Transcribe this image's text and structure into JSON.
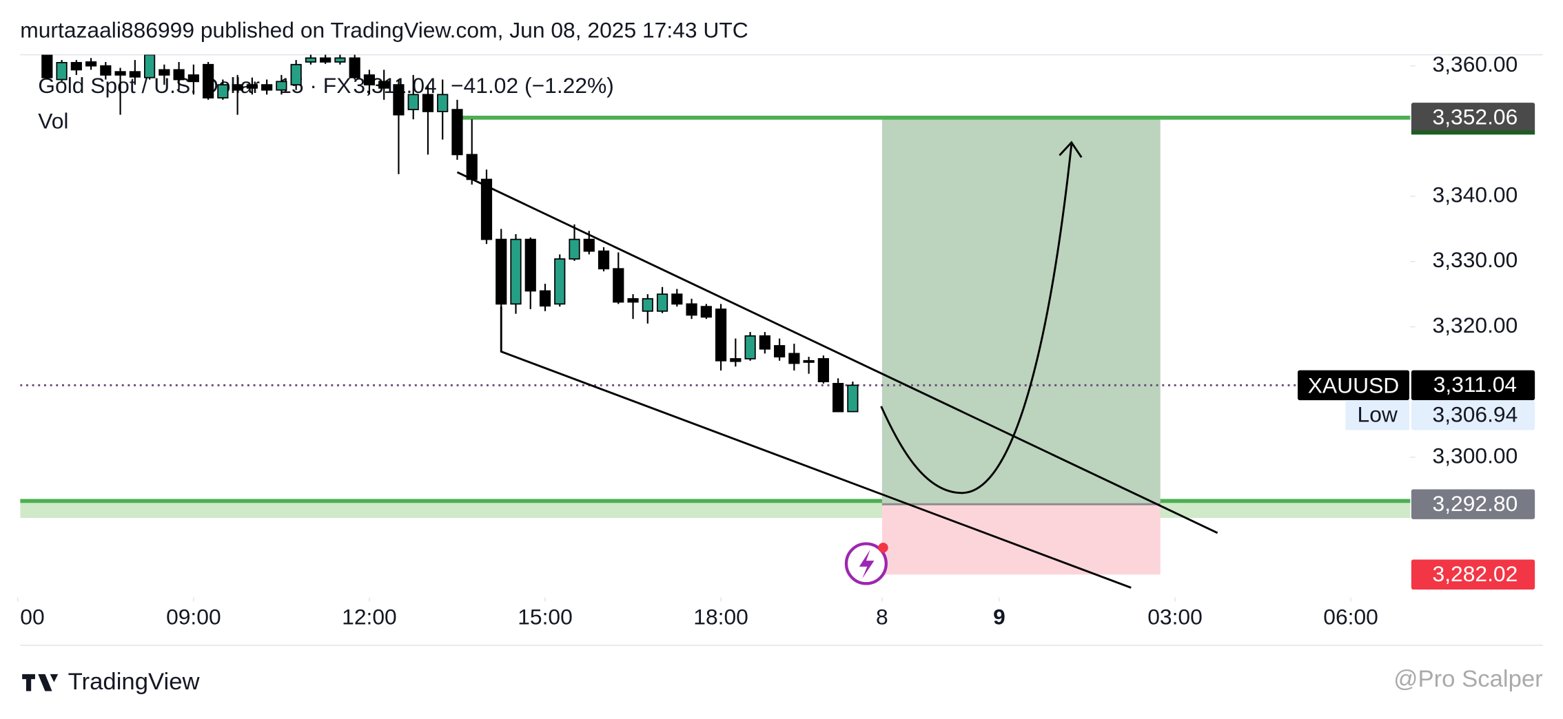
{
  "chart_data": {
    "type": "candlestick",
    "header": "murtazaali886999 published on TradingView.com, Jun 08, 2025 17:43 UTC",
    "symbol": "Gold Spot / U.S. Dollar · 15 · FX",
    "change": "−41.02 (−1.22%)",
    "volume_label": "Vol",
    "brand": "TradingView",
    "watermark": "@Pro Scalper",
    "up_color": "#26a085",
    "down_color": "#000000",
    "x": [
      2,
      3,
      4,
      5,
      6,
      7,
      8,
      9,
      10,
      11,
      12,
      13,
      14,
      15,
      16,
      17,
      18,
      19,
      20,
      21,
      22,
      23,
      24,
      25,
      26,
      27,
      28,
      29,
      30,
      31,
      32,
      33,
      34,
      35,
      36,
      37,
      38,
      39,
      40,
      41,
      42,
      43,
      44,
      45,
      46,
      47,
      48,
      49,
      50,
      51,
      52,
      53,
      54,
      55,
      56,
      57
    ],
    "open": [
      3361.7,
      3357.9,
      3360.5,
      3360.6,
      3360.0,
      3359.1,
      3359.1,
      3358.2,
      3359.4,
      3359.4,
      3358.6,
      3360.2,
      3355.1,
      3357.1,
      3357.1,
      3357.1,
      3356.3,
      3357.1,
      3360.6,
      3361.2,
      3360.6,
      3361.2,
      3358.6,
      3357.6,
      3357.1,
      3353.3,
      3355.6,
      3353.0,
      3353.3,
      3346.4,
      3342.6,
      3333.4,
      3323.5,
      3333.4,
      3325.5,
      3323.5,
      3330.4,
      3333.4,
      3331.6,
      3328.9,
      3324.3,
      3322.4,
      3322.4,
      3325.0,
      3323.5,
      3323.1,
      3322.7,
      3315.1,
      3315.1,
      3318.6,
      3317.1,
      3315.9,
      3314.8,
      3315.1,
      3311.3,
      3307.0
    ],
    "high": [
      3362.4,
      3360.9,
      3360.9,
      3361.2,
      3360.6,
      3359.7,
      3360.9,
      3362.4,
      3360.2,
      3360.6,
      3360.2,
      3360.6,
      3357.9,
      3358.6,
      3358.2,
      3357.9,
      3358.6,
      3360.9,
      3361.7,
      3361.7,
      3362.4,
      3361.7,
      3359.4,
      3359.4,
      3357.9,
      3358.6,
      3357.1,
      3357.9,
      3354.8,
      3351.8,
      3344.1,
      3335.0,
      3334.2,
      3333.7,
      3326.6,
      3331.1,
      3335.7,
      3334.7,
      3332.2,
      3331.4,
      3325.0,
      3325.0,
      3326.1,
      3325.8,
      3324.3,
      3323.5,
      3323.5,
      3318.2,
      3319.2,
      3319.2,
      3318.2,
      3317.4,
      3315.4,
      3315.6,
      3312.1,
      3311.6
    ],
    "low": [
      3357.9,
      3357.6,
      3358.6,
      3359.4,
      3357.9,
      3352.5,
      3357.1,
      3357.9,
      3357.1,
      3356.3,
      3355.6,
      3354.8,
      3354.8,
      3352.5,
      3355.6,
      3355.6,
      3355.6,
      3356.3,
      3360.2,
      3360.3,
      3360.2,
      3357.9,
      3355.6,
      3354.8,
      3343.4,
      3351.8,
      3346.4,
      3348.7,
      3345.6,
      3341.8,
      3332.7,
      3322.7,
      3322.0,
      3322.7,
      3322.4,
      3323.1,
      3330.1,
      3331.1,
      3328.5,
      3323.5,
      3321.2,
      3320.5,
      3322.1,
      3323.1,
      3321.2,
      3321.2,
      3313.3,
      3313.9,
      3314.8,
      3315.9,
      3314.8,
      3313.3,
      3312.8,
      3311.3,
      3306.94,
      3306.94
    ],
    "close": [
      3358.2,
      3360.5,
      3359.4,
      3360.0,
      3358.6,
      3358.6,
      3358.3,
      3361.7,
      3358.6,
      3357.9,
      3357.6,
      3355.1,
      3357.1,
      3356.3,
      3356.6,
      3356.3,
      3357.6,
      3360.2,
      3361.2,
      3360.6,
      3361.2,
      3358.2,
      3357.1,
      3356.6,
      3352.5,
      3355.6,
      3353.0,
      3355.6,
      3346.4,
      3342.6,
      3333.4,
      3323.5,
      3333.4,
      3325.5,
      3323.2,
      3330.4,
      3333.4,
      3331.6,
      3328.9,
      3323.8,
      3323.8,
      3324.3,
      3325.0,
      3323.5,
      3321.8,
      3321.5,
      3314.8,
      3314.7,
      3318.6,
      3316.6,
      3315.4,
      3314.4,
      3314.7,
      3311.6,
      3307.0,
      3311.04
    ],
    "xlim": [
      0,
      95
    ],
    "xticks": [
      {
        "value": 0,
        "label": "00"
      },
      {
        "value": 12,
        "label": "09:00"
      },
      {
        "value": 24,
        "label": "12:00"
      },
      {
        "value": 36,
        "label": "15:00"
      },
      {
        "value": 48,
        "label": "18:00"
      },
      {
        "value": 59,
        "label": "8"
      },
      {
        "value": 67,
        "label": "9",
        "bold": true
      },
      {
        "value": 79,
        "label": "03:00"
      },
      {
        "value": 91,
        "label": "06:00"
      }
    ],
    "ylim": [
      3278.5,
      3361.7
    ],
    "yticks": [
      {
        "value": 3300,
        "label": "3,300.00"
      },
      {
        "value": 3320,
        "label": "3,320.00"
      },
      {
        "value": 3330,
        "label": "3,330.00"
      },
      {
        "value": 3340,
        "label": "3,340.00"
      },
      {
        "value": 3360,
        "label": "3,360.00"
      }
    ],
    "grid": false,
    "last": {
      "name": "XAUUSD",
      "value": 3311.04,
      "label": "3,311.04"
    },
    "low_marker": {
      "name": "Low",
      "value": 3306.94,
      "label": "3,306.94"
    },
    "position": {
      "x": [
        59,
        78
      ],
      "target_line_from": 30.2,
      "target": {
        "value": 3352.06,
        "label": "3,352.06"
      },
      "entry": {
        "value": 3292.8,
        "label": "3,292.80"
      },
      "stop": {
        "value": 3282.02,
        "label": "3,282.02"
      }
    },
    "support_zone": [
      3290.7,
      3293.3
    ],
    "trendlines": [
      {
        "x": [
          30.0,
          81.9
        ],
        "y": [
          3343.7,
          3288.4
        ]
      },
      {
        "x": [
          33.0,
          33.0,
          76.0
        ],
        "y": [
          3323.1,
          3316.2,
          3280.0
        ]
      }
    ]
  }
}
